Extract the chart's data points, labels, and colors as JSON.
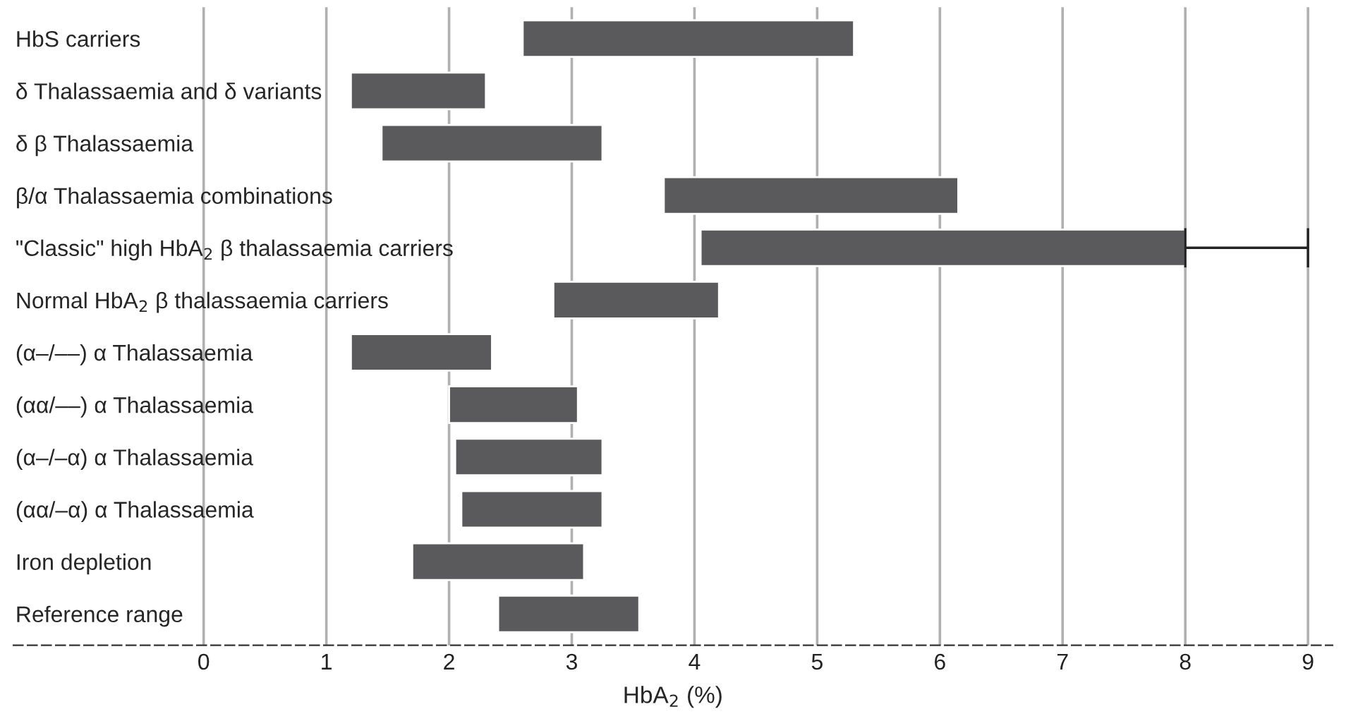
{
  "chart_data": {
    "type": "bar",
    "orientation": "horizontal",
    "categories": [
      "HbS carriers",
      "δ Thalassaemia and δ variants",
      "δ β Thalassaemia",
      "β/α Thalassaemia combinations",
      "\"Classic\" high HbA$_{2}$ β thalassaemia carriers",
      "Normal HbA$_{2}$ β thalassaemia carriers",
      "(α–/––) α Thalassaemia",
      "(αα/––) α Thalassaemia",
      "(α–/–α) α Thalassaemia",
      "(αα/–α) α Thalassaemia",
      "Iron depletion",
      "Reference range"
    ],
    "base": [
      2.6,
      1.2,
      1.45,
      3.75,
      4.05,
      2.85,
      1.2,
      2.0,
      2.05,
      2.1,
      1.7,
      2.4
    ],
    "values": [
      2.7,
      1.1,
      1.8,
      2.4,
      3.95,
      1.35,
      1.15,
      1.05,
      1.2,
      1.15,
      1.4,
      1.15
    ],
    "errors": [
      null,
      null,
      null,
      null,
      [
        8.0,
        9.0
      ],
      null,
      null,
      null,
      null,
      null,
      null,
      null
    ],
    "color": "#5a5a5c",
    "xlabel": "HbA$_{2}$ (%)",
    "xlim": [
      -1.55,
      9.2
    ],
    "xticks": [
      0,
      1,
      2,
      3,
      4,
      5,
      6,
      7,
      8,
      9
    ],
    "grid": "x"
  }
}
